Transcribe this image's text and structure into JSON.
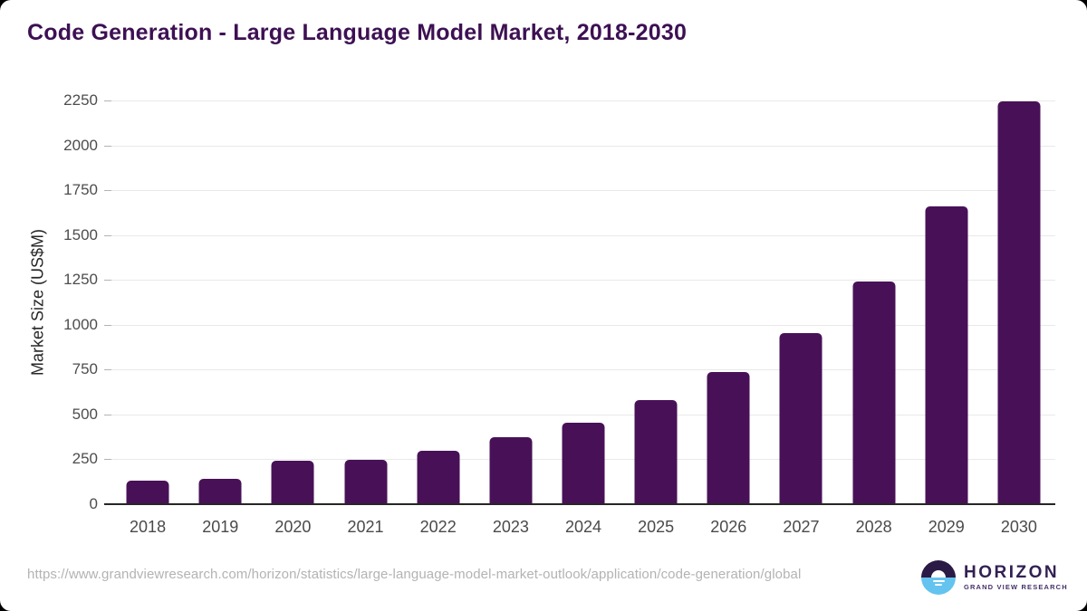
{
  "title": "Code Generation - Large Language Model Market, 2018-2030",
  "source_url": "https://www.grandviewresearch.com/horizon/statistics/large-language-model-market-outlook/application/code-generation/global",
  "logo": {
    "name": "HORIZON",
    "subtitle": "GRAND VIEW RESEARCH",
    "icon": "horizon-sunset-icon"
  },
  "colors": {
    "bar": "#481157",
    "title_text": "#3d1053",
    "axis_line": "#262626",
    "gridline": "#e9e9e9",
    "tick_mark": "#b3b3b3",
    "tick_label": "#4d4d4d",
    "url_text": "#b3b3b3",
    "logo_top_half": "#2b1a45",
    "logo_bottom_half": "#64c3ef",
    "card_background": "#ffffff",
    "page_background": "#000000"
  },
  "chart_data": {
    "type": "bar",
    "title": "Code Generation - Large Language Model Market, 2018-2030",
    "categories": [
      "2018",
      "2019",
      "2020",
      "2021",
      "2022",
      "2023",
      "2024",
      "2025",
      "2026",
      "2027",
      "2028",
      "2029",
      "2030"
    ],
    "values": [
      133,
      141,
      240,
      245,
      300,
      371,
      456,
      582,
      735,
      952,
      1240,
      1660,
      2247
    ],
    "xlabel": "",
    "ylabel": "Market Size (US$M)",
    "ylim": [
      0,
      2250
    ],
    "ytick_step": 250,
    "yticks": [
      0,
      250,
      500,
      750,
      1000,
      1250,
      1500,
      1750,
      2000,
      2250
    ],
    "grid": true,
    "legend": false,
    "bar_color": "#481157"
  }
}
